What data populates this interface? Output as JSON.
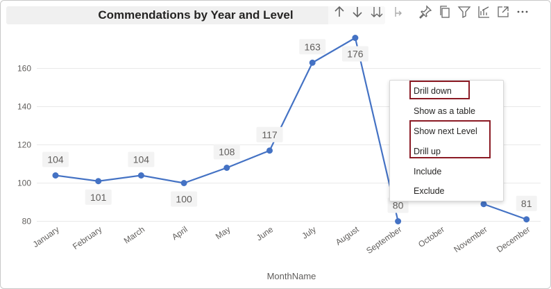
{
  "visual": {
    "title": "Commendations by Year and Level",
    "menu": {
      "items": [
        "Drill down",
        "Show as a table",
        "Show next Level",
        "Drill up",
        "Include",
        "Exclude"
      ]
    }
  },
  "toolbar": {
    "icons": [
      "drill-up-arrow-icon",
      "drill-down-arrow-icon",
      "expand-all-down-icon",
      "expand-hierarchy-icon",
      "pin-icon",
      "copy-visual-icon",
      "filter-icon",
      "focus-chart-icon",
      "focus-mode-icon",
      "more-options-icon"
    ]
  },
  "chart_data": {
    "type": "line",
    "categories": [
      "January",
      "February",
      "March",
      "April",
      "May",
      "June",
      "July",
      "August",
      "September",
      "October",
      "November",
      "December"
    ],
    "series": [
      {
        "values": [
          104,
          101,
          104,
          100,
          108,
          117,
          163,
          176,
          80,
          null,
          89,
          81
        ]
      }
    ],
    "data_labels": [
      "104",
      "101",
      "104",
      "100",
      "108",
      "117",
      "163",
      "176",
      "80",
      "",
      "",
      "81"
    ],
    "xlabel": "MonthName",
    "ylabel": "",
    "ylim": [
      80,
      176
    ],
    "yticks": [
      80,
      100,
      120,
      140,
      160
    ],
    "grid": true,
    "color": "#4472c4"
  }
}
